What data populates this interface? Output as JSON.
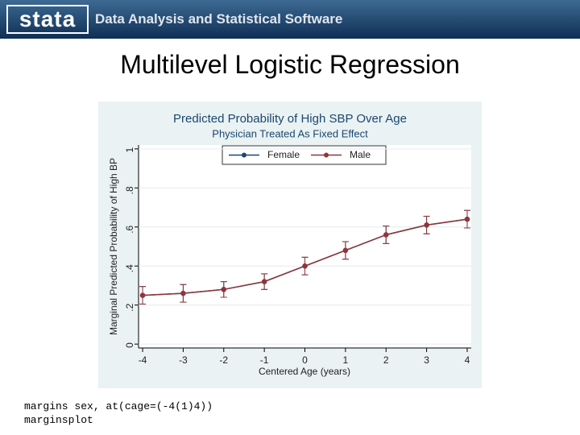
{
  "header": {
    "logo": "stata",
    "tagline": "Data Analysis and Statistical Software"
  },
  "slide_title": "Multilevel Logistic Regression",
  "code": [
    "margins sex, at(cage=(-4(1)4))",
    "marginsplot"
  ],
  "chart_data": {
    "type": "line",
    "title": "Predicted Probability of High SBP Over Age",
    "subtitle": "Physician Treated As Fixed Effect",
    "x_label": "Centered Age (years)",
    "y_label": "Marginal Predicted Probability of High BP",
    "x": [
      -4,
      -3,
      -2,
      -1,
      0,
      1,
      2,
      3,
      4
    ],
    "series": [
      {
        "name": "Female",
        "color": "#1a476f",
        "values": [
          0.25,
          0.26,
          0.28,
          0.32,
          0.4,
          0.48,
          0.56,
          0.61,
          0.64
        ],
        "errors": [
          0.045,
          0.045,
          0.04,
          0.04,
          0.045,
          0.045,
          0.045,
          0.045,
          0.045
        ]
      },
      {
        "name": "Male",
        "color": "#90353b",
        "values": [
          0.25,
          0.26,
          0.28,
          0.32,
          0.4,
          0.48,
          0.56,
          0.61,
          0.64
        ],
        "errors": [
          0.045,
          0.045,
          0.04,
          0.04,
          0.045,
          0.045,
          0.045,
          0.045,
          0.045
        ]
      }
    ],
    "xlim": [
      -4.1,
      4.1
    ],
    "xticks": [
      -4,
      -3,
      -2,
      -1,
      0,
      1,
      2,
      3,
      4
    ],
    "ylim": [
      -0.02,
      1.02
    ],
    "yticks": [
      0,
      {
        "value": 0.2,
        "label": ".2"
      },
      {
        "value": 0.4,
        "label": ".4"
      },
      {
        "value": 0.6,
        "label": ".6"
      },
      {
        "value": 0.8,
        "label": ".8"
      },
      1
    ],
    "grid": true,
    "legend": "top"
  }
}
